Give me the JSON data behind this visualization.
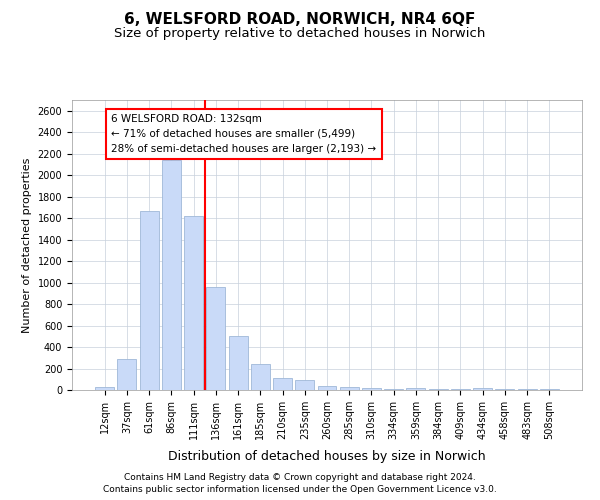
{
  "title": "6, WELSFORD ROAD, NORWICH, NR4 6QF",
  "subtitle": "Size of property relative to detached houses in Norwich",
  "xlabel": "Distribution of detached houses by size in Norwich",
  "ylabel": "Number of detached properties",
  "categories": [
    "12sqm",
    "37sqm",
    "61sqm",
    "86sqm",
    "111sqm",
    "136sqm",
    "161sqm",
    "185sqm",
    "210sqm",
    "235sqm",
    "260sqm",
    "285sqm",
    "310sqm",
    "334sqm",
    "359sqm",
    "384sqm",
    "409sqm",
    "434sqm",
    "458sqm",
    "483sqm",
    "508sqm"
  ],
  "values": [
    30,
    290,
    1670,
    2140,
    1620,
    960,
    500,
    245,
    115,
    90,
    35,
    30,
    20,
    10,
    20,
    10,
    5,
    20,
    5,
    5,
    5
  ],
  "bar_color": "#c9daf8",
  "bar_edge_color": "#a0b8d8",
  "vline_color": "red",
  "vline_pos": 4.5,
  "annotation_text": "6 WELSFORD ROAD: 132sqm\n← 71% of detached houses are smaller (5,499)\n28% of semi-detached houses are larger (2,193) →",
  "annotation_box_color": "white",
  "annotation_box_edge_color": "red",
  "ylim": [
    0,
    2700
  ],
  "yticks": [
    0,
    200,
    400,
    600,
    800,
    1000,
    1200,
    1400,
    1600,
    1800,
    2000,
    2200,
    2400,
    2600
  ],
  "footer1": "Contains HM Land Registry data © Crown copyright and database right 2024.",
  "footer2": "Contains public sector information licensed under the Open Government Licence v3.0.",
  "bg_color": "#ffffff",
  "grid_color": "#c8d0dc",
  "title_fontsize": 11,
  "subtitle_fontsize": 9.5,
  "tick_fontsize": 7,
  "ylabel_fontsize": 8,
  "xlabel_fontsize": 9,
  "annotation_fontsize": 7.5,
  "footer_fontsize": 6.5
}
